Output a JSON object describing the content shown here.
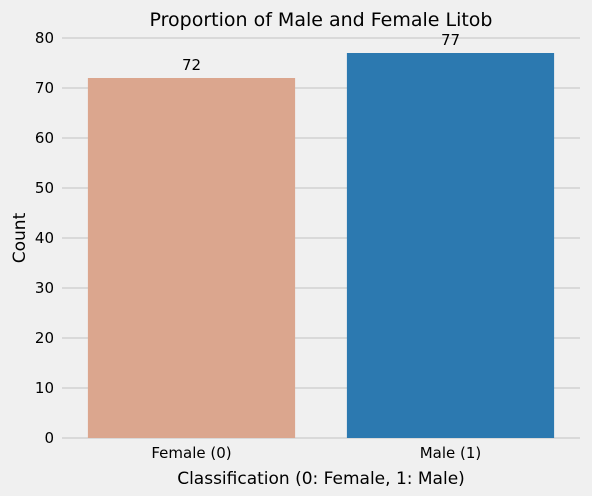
{
  "chart_data": {
    "type": "bar",
    "title": "Proportion of Male and Female Litob",
    "xlabel": "Classification (0: Female, 1: Male)",
    "ylabel": "Count",
    "categories": [
      "Female (0)",
      "Male (1)"
    ],
    "values": [
      72,
      77
    ],
    "data_labels": [
      "72",
      "77"
    ],
    "colors": [
      "#dba68e",
      "#2c79b0"
    ],
    "ylim": [
      0,
      80
    ],
    "yticks": [
      0,
      10,
      20,
      30,
      40,
      50,
      60,
      70,
      80
    ],
    "grid": "horizontal",
    "background": "#f0f0f0"
  }
}
